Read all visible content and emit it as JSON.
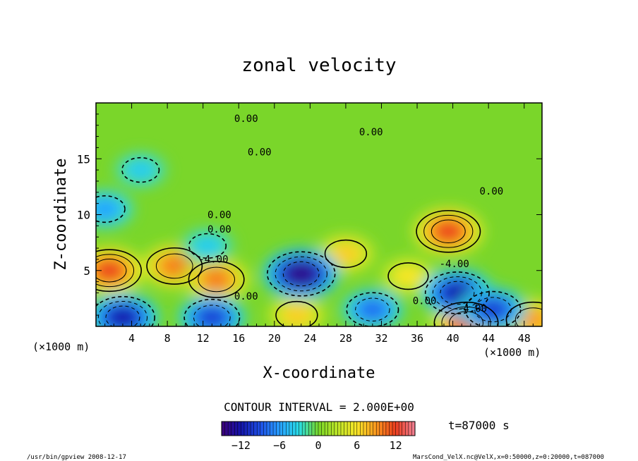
{
  "chart_data": {
    "type": "heatmap",
    "title": "zonal velocity",
    "xlabel": "X-coordinate",
    "ylabel": "Z-coordinate",
    "x_unit_label": "(×1000 m)",
    "x_unit_label_right": "(×1000 m)",
    "xlim": [
      0,
      50
    ],
    "ylim": [
      0,
      20
    ],
    "x_ticks": [
      4,
      8,
      12,
      16,
      20,
      24,
      28,
      32,
      36,
      40,
      44,
      48
    ],
    "y_ticks": [
      5,
      10,
      15
    ],
    "value_range": [
      -15,
      15
    ],
    "contour_interval_text": "CONTOUR INTERVAL = 2.000E+00",
    "time_text": "t=87000 s",
    "colorbar_ticks": [
      -12,
      -6,
      0,
      6,
      12
    ],
    "contour_labels": [
      {
        "text": "0.00",
        "x": 15.5,
        "z": 18.3
      },
      {
        "text": "0.00",
        "x": 29.5,
        "z": 17.1
      },
      {
        "text": "0.00",
        "x": 17.0,
        "z": 15.3
      },
      {
        "text": "0.00",
        "x": 43.0,
        "z": 11.8
      },
      {
        "text": "0.00",
        "x": 12.5,
        "z": 9.7
      },
      {
        "text": "0.00",
        "x": 12.5,
        "z": 8.4
      },
      {
        "text": "-4.00",
        "x": 11.5,
        "z": 5.7
      },
      {
        "text": "0.00",
        "x": 15.5,
        "z": 2.4
      },
      {
        "text": "0.00",
        "x": 35.5,
        "z": 2.0
      },
      {
        "text": "-4.00",
        "x": 38.5,
        "z": 5.3
      },
      {
        "text": "-4.00",
        "x": 40.5,
        "z": 1.3
      }
    ],
    "features": [
      {
        "sign": "positive",
        "x": 1.5,
        "z": 5.0,
        "peak": 12
      },
      {
        "sign": "positive",
        "x": 8.8,
        "z": 5.4,
        "peak": 10
      },
      {
        "sign": "positive",
        "x": 13.5,
        "z": 4.2,
        "peak": 10
      },
      {
        "sign": "positive",
        "x": 22.5,
        "z": 1.0,
        "peak": 7
      },
      {
        "sign": "positive",
        "x": 28.0,
        "z": 6.5,
        "peak": 7
      },
      {
        "sign": "positive",
        "x": 35.0,
        "z": 4.5,
        "peak": 6
      },
      {
        "sign": "positive",
        "x": 39.5,
        "z": 8.5,
        "peak": 12
      },
      {
        "sign": "positive",
        "x": 41.5,
        "z": 0.3,
        "peak": 12
      },
      {
        "sign": "positive",
        "x": 49.0,
        "z": 0.6,
        "peak": 9
      },
      {
        "sign": "negative",
        "x": 3.0,
        "z": 0.8,
        "peak": -12
      },
      {
        "sign": "negative",
        "x": 13.0,
        "z": 0.8,
        "peak": -10
      },
      {
        "sign": "negative",
        "x": 23.0,
        "z": 4.7,
        "peak": -14
      },
      {
        "sign": "negative",
        "x": 31.0,
        "z": 1.5,
        "peak": -8
      },
      {
        "sign": "negative",
        "x": 40.5,
        "z": 3.0,
        "peak": -12
      },
      {
        "sign": "negative",
        "x": 44.5,
        "z": 1.5,
        "peak": -10
      },
      {
        "sign": "negative",
        "x": 1.0,
        "z": 10.5,
        "peak": -6
      },
      {
        "sign": "negative",
        "x": 5.0,
        "z": 14.0,
        "peak": -4
      },
      {
        "sign": "negative",
        "x": 12.5,
        "z": 7.2,
        "peak": -4
      }
    ]
  },
  "footer": {
    "program": "/usr/bin/gpview   2008-12-17",
    "file": "MarsCond_VelX.nc@VelX,x=0:50000,z=0:20000,t=087000"
  }
}
